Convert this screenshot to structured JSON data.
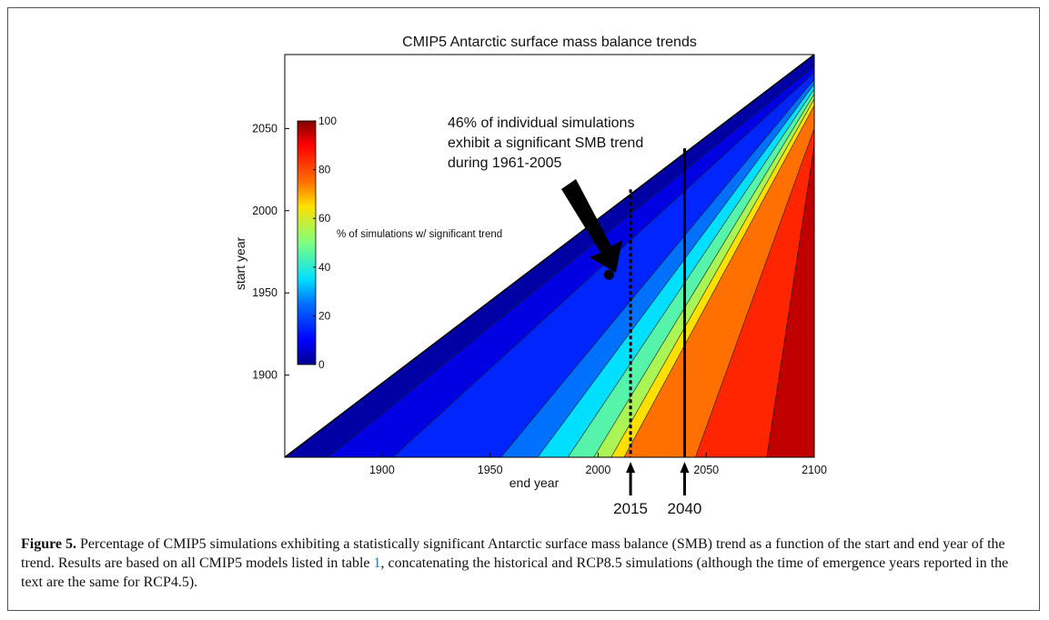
{
  "chart_data": {
    "type": "heatmap",
    "title": "CMIP5 Antarctic surface mass balance trends",
    "xlabel": "end year",
    "ylabel": "start year",
    "xlim": [
      1855,
      2100
    ],
    "ylim": [
      1850,
      2095
    ],
    "x_ticks": [
      1900,
      1950,
      2000,
      2050,
      2100
    ],
    "y_ticks": [
      1900,
      1950,
      2000,
      2050
    ],
    "colorbar": {
      "label": "% of simulations w/ significant trend",
      "range": [
        0,
        100
      ],
      "ticks": [
        0,
        20,
        40,
        60,
        80,
        100
      ]
    },
    "contour_levels": [
      5,
      10,
      20,
      30,
      40,
      50,
      60,
      70,
      80,
      90
    ],
    "contour_end_year_at_start_1850": [
      1875,
      1905,
      1955,
      1972,
      1986,
      1998,
      2006,
      2012,
      2045,
      2078
    ],
    "contour_start_year_at_end_2100": [
      2088,
      2084,
      2080,
      2077,
      2074,
      2071,
      2068,
      2064,
      2050,
      2040
    ],
    "highlight_point": {
      "end_year": 2005,
      "start_year": 1961
    },
    "annotation": {
      "lines": [
        "46% of individual simulations",
        "exhibit a significant SMB trend",
        "during 1961-2005"
      ]
    },
    "vertical_markers": [
      {
        "end_year": 2015,
        "style": "dotted",
        "label": "2015"
      },
      {
        "end_year": 2040,
        "style": "solid",
        "label": "2040"
      }
    ]
  },
  "caption": {
    "label": "Figure 5.",
    "text_before_ref": " Percentage of CMIP5 simulations exhibiting a statistically significant Antarctic surface mass balance (SMB) trend as a function of the start and end year of the trend. Results are based on all CMIP5 models listed in table ",
    "ref": "1",
    "text_after_ref": ", concatenating the historical and RCP8.5 simulations (although the time of emergence years reported in the text are the same for RCP4.5)."
  }
}
